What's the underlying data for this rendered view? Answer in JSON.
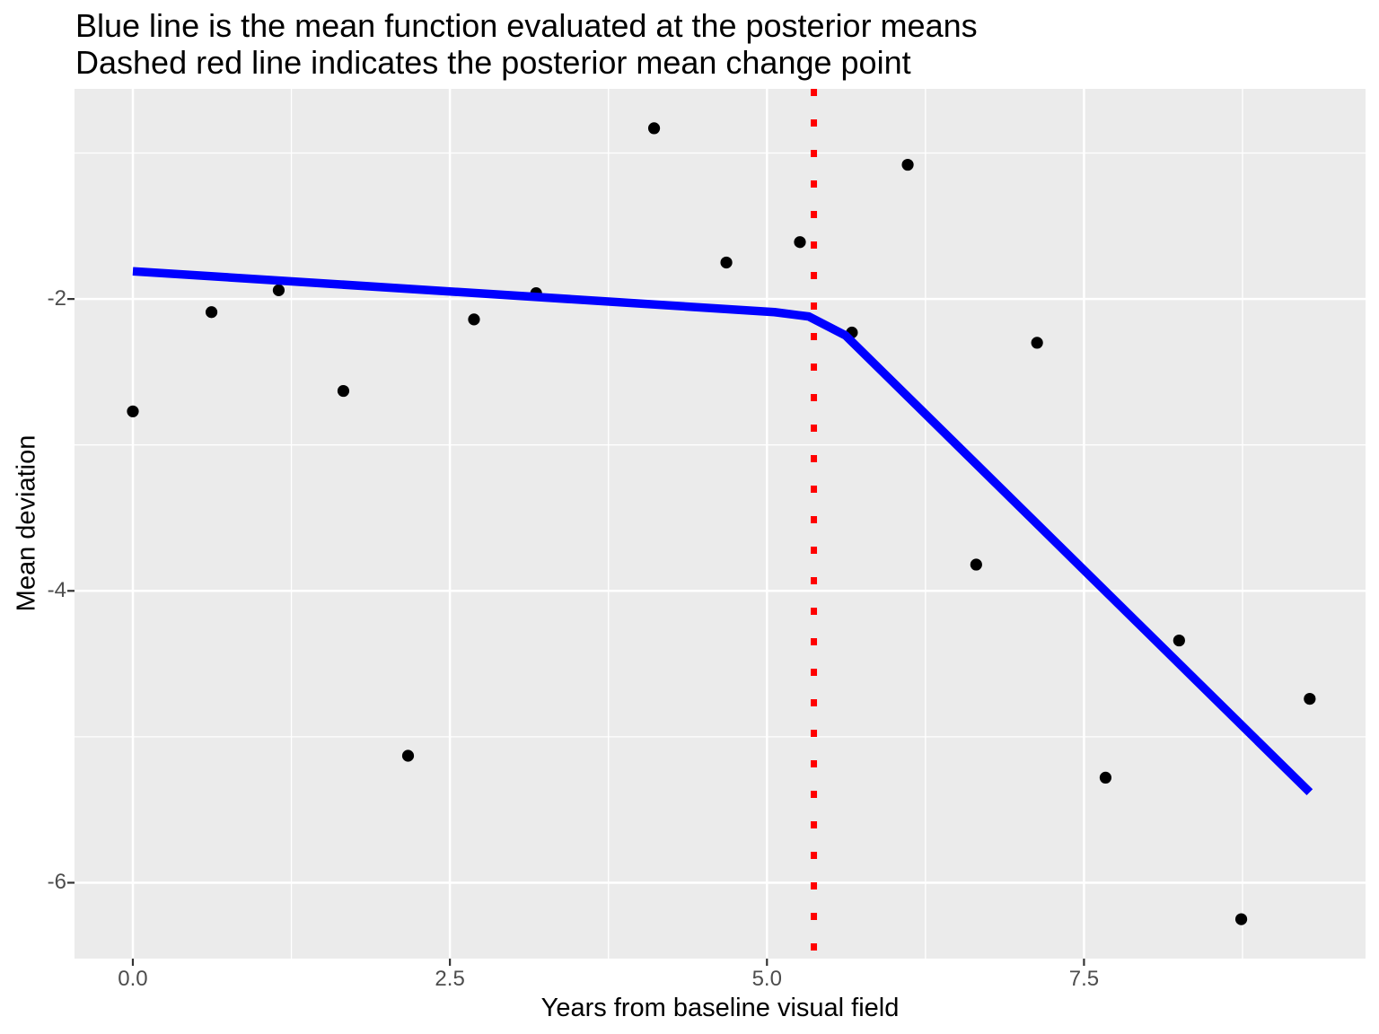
{
  "title": {
    "line1": "Blue line is the mean function evaluated at the posterior means",
    "line2": "Dashed red line indicates the posterior mean change point"
  },
  "chart_data": {
    "type": "scatter",
    "xlabel": "Years from baseline visual field",
    "ylabel": "Mean deviation",
    "xlim": [
      -0.46,
      9.72
    ],
    "ylim": [
      -6.52,
      -0.56
    ],
    "grid": "on",
    "panel_style": "ggplot-grey",
    "x_ticks": [
      {
        "label": "0.0",
        "value": 0.0
      },
      {
        "label": "2.5",
        "value": 2.5
      },
      {
        "label": "5.0",
        "value": 5.0
      },
      {
        "label": "7.5",
        "value": 7.5
      }
    ],
    "x_minor_ticks": [
      1.25,
      3.75,
      6.25,
      8.75
    ],
    "y_ticks": [
      {
        "label": "-2",
        "value": -2
      },
      {
        "label": "-4",
        "value": -4
      },
      {
        "label": "-6",
        "value": -6
      }
    ],
    "y_minor_ticks": [
      -1,
      -3,
      -5
    ],
    "points": [
      [
        0.0,
        -2.77
      ],
      [
        0.62,
        -2.09
      ],
      [
        1.15,
        -1.94
      ],
      [
        1.66,
        -2.63
      ],
      [
        2.17,
        -5.13
      ],
      [
        2.69,
        -2.14
      ],
      [
        3.18,
        -1.96
      ],
      [
        4.11,
        -0.83
      ],
      [
        4.68,
        -1.75
      ],
      [
        5.26,
        -1.61
      ],
      [
        5.67,
        -2.23
      ],
      [
        6.11,
        -1.08
      ],
      [
        6.65,
        -3.82
      ],
      [
        7.13,
        -2.3
      ],
      [
        7.67,
        -5.28
      ],
      [
        8.25,
        -4.34
      ],
      [
        8.74,
        -6.25
      ],
      [
        9.28,
        -4.74
      ]
    ],
    "series": [
      {
        "name": "posterior-mean-function",
        "style": "solid",
        "color_key": "blue",
        "points": [
          [
            0.0,
            -1.81
          ],
          [
            5.06,
            -2.09
          ],
          [
            5.33,
            -2.12
          ],
          [
            5.62,
            -2.25
          ],
          [
            9.28,
            -5.38
          ]
        ]
      }
    ],
    "change_point_x": 5.37,
    "colors": {
      "blue": "#0000FF",
      "red": "#FF0000",
      "panel": "#EBEBEB",
      "grid": "#FFFFFF",
      "point": "#000000",
      "tick_text": "#4D4D4D",
      "tick_mark": "#333333",
      "text": "#000000"
    }
  }
}
